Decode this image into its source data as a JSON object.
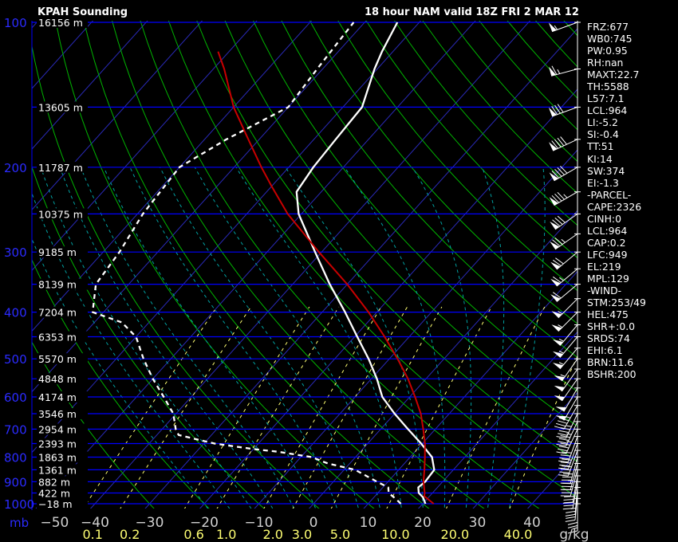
{
  "header": {
    "station": "KPAH Sounding",
    "valid": "18 hour NAM valid 18Z FRI  2 MAR 12"
  },
  "colors": {
    "background": "#000000",
    "isobar": "#0000ff",
    "pressure_label": "#2b2bff",
    "isotherm": "#2a2ab8",
    "dry_adiabat": "#00b400",
    "moist_adiabat": "#00a0a0",
    "mixing_ratio": "#ffff73",
    "temperature": "#ffffff",
    "dewpoint": "#ffffff",
    "parcel": "#c80000",
    "wind_barb": "#ffffff",
    "temperature_label": "#d0d0d0",
    "mixing_ratio_label": "#ffff73"
  },
  "indices": [
    "FRZ:677",
    "WB0:745",
    "PW:0.95",
    "RH:nan",
    "MAXT:22.7",
    "TH:5588",
    "L57:7.1",
    "LCL:964",
    "LI:-5.2",
    "SI:-0.4",
    "TT:51",
    "KI:14",
    "SW:374",
    "EI:-1.3",
    "-PARCEL-",
    "CAPE:2326",
    "CINH:0",
    "LCL:964",
    "CAP:0.2",
    "LFC:949",
    "EL:219",
    "MPL:129",
    "-WIND-",
    "STM:253/49",
    "HEL:475",
    "SHR+:0.0",
    "SRDS:74",
    "EHI:6.1",
    "BRN:11.6",
    "BSHR:200"
  ],
  "chart_data": {
    "type": "skew-t",
    "x_unit": "degC",
    "y_unit": "mb",
    "mixing_ratio_unit": "g/kg",
    "pressure_labels": [
      "100",
      "200",
      "300",
      "400",
      "500",
      "600",
      "700",
      "800",
      "900",
      "1000"
    ],
    "pressure_values": [
      100,
      200,
      300,
      400,
      500,
      600,
      700,
      800,
      900,
      1000
    ],
    "pressure_axis_unit_label": "mb",
    "height_levels": [
      {
        "p": 100,
        "label": "16156 m"
      },
      {
        "p": 150,
        "label": "13605 m"
      },
      {
        "p": 200,
        "label": "11787 m"
      },
      {
        "p": 250,
        "label": "10375 m"
      },
      {
        "p": 300,
        "label": "9185 m"
      },
      {
        "p": 350,
        "label": "8139 m"
      },
      {
        "p": 400,
        "label": "7204 m"
      },
      {
        "p": 450,
        "label": "6353 m"
      },
      {
        "p": 500,
        "label": "5570 m"
      },
      {
        "p": 550,
        "label": "4848 m"
      },
      {
        "p": 600,
        "label": "4174 m"
      },
      {
        "p": 650,
        "label": "3546 m"
      },
      {
        "p": 700,
        "label": "2954 m"
      },
      {
        "p": 750,
        "label": "2393 m"
      },
      {
        "p": 800,
        "label": "1863 m"
      },
      {
        "p": 850,
        "label": "1361 m"
      },
      {
        "p": 900,
        "label": "882 m"
      },
      {
        "p": 950,
        "label": "422 m"
      },
      {
        "p": 1000,
        "label": "−18 m"
      }
    ],
    "temperature_ticks": [
      {
        "t": -50,
        "label": "−50"
      },
      {
        "t": -40,
        "label": "−40"
      },
      {
        "t": -30,
        "label": "−30"
      },
      {
        "t": -20,
        "label": "−20"
      },
      {
        "t": -10,
        "label": "−10"
      },
      {
        "t": 0,
        "label": "0"
      },
      {
        "t": 10,
        "label": "10"
      },
      {
        "t": 20,
        "label": "20"
      },
      {
        "t": 30,
        "label": "30"
      },
      {
        "t": 40,
        "label": "40"
      }
    ],
    "mixing_ratio_lines": [
      {
        "w": 0.1,
        "label": "0.1"
      },
      {
        "w": 0.2,
        "label": "0.2"
      },
      {
        "w": 0.6,
        "label": "0.6"
      },
      {
        "w": 1.0,
        "label": "1.0"
      },
      {
        "w": 2.0,
        "label": "2.0"
      },
      {
        "w": 3.0,
        "label": "3.0"
      },
      {
        "w": 5.0,
        "label": "5.0"
      },
      {
        "w": 10.0,
        "label": "10.0"
      },
      {
        "w": 20.0,
        "label": "20.0"
      },
      {
        "w": 40.0,
        "label": "40.0"
      }
    ],
    "series": [
      {
        "key": "temperature",
        "style": "solid",
        "points": [
          [
            1000,
            20.5
          ],
          [
            970,
            19.0
          ],
          [
            950,
            17.5
          ],
          [
            925,
            16.5
          ],
          [
            900,
            16.8
          ],
          [
            850,
            16.5
          ],
          [
            800,
            14.0
          ],
          [
            750,
            9.8
          ],
          [
            700,
            5.0
          ],
          [
            650,
            0.0
          ],
          [
            600,
            -5.0
          ],
          [
            550,
            -9.0
          ],
          [
            500,
            -13.8
          ],
          [
            450,
            -19.5
          ],
          [
            400,
            -25.8
          ],
          [
            350,
            -33.2
          ],
          [
            300,
            -41.2
          ],
          [
            250,
            -50.5
          ],
          [
            225,
            -54.5
          ],
          [
            200,
            -55.5
          ],
          [
            175,
            -56.0
          ],
          [
            150,
            -56.5
          ],
          [
            125,
            -60.5
          ],
          [
            115,
            -62.0
          ],
          [
            100,
            -64.0
          ]
        ]
      },
      {
        "key": "dewpoint",
        "style": "dashed",
        "points": [
          [
            1000,
            16.0
          ],
          [
            980,
            14.5
          ],
          [
            950,
            12.0
          ],
          [
            925,
            11.0
          ],
          [
            900,
            8.0
          ],
          [
            850,
            2.0
          ],
          [
            825,
            -4.0
          ],
          [
            800,
            -8.0
          ],
          [
            780,
            -15.0
          ],
          [
            770,
            -20.0
          ],
          [
            750,
            -28.0
          ],
          [
            720,
            -36.0
          ],
          [
            700,
            -37.5
          ],
          [
            650,
            -40.5
          ],
          [
            600,
            -45.0
          ],
          [
            550,
            -50.0
          ],
          [
            500,
            -55.0
          ],
          [
            450,
            -60.0
          ],
          [
            420,
            -65.0
          ],
          [
            400,
            -72.0
          ],
          [
            350,
            -76.0
          ],
          [
            300,
            -77.0
          ],
          [
            250,
            -79.0
          ],
          [
            200,
            -80.0
          ],
          [
            175,
            -76.0
          ],
          [
            150,
            -70.0
          ],
          [
            125,
            -71.0
          ],
          [
            100,
            -72.0
          ]
        ]
      },
      {
        "key": "parcel",
        "style": "solid",
        "points": [
          [
            1000,
            22.0
          ],
          [
            964,
            19.0
          ],
          [
            950,
            18.6
          ],
          [
            900,
            16.5
          ],
          [
            850,
            14.7
          ],
          [
            800,
            12.7
          ],
          [
            750,
            10.5
          ],
          [
            700,
            7.8
          ],
          [
            650,
            4.8
          ],
          [
            600,
            1.0
          ],
          [
            550,
            -3.3
          ],
          [
            500,
            -8.5
          ],
          [
            450,
            -14.5
          ],
          [
            400,
            -21.5
          ],
          [
            350,
            -30.0
          ],
          [
            300,
            -40.5
          ],
          [
            250,
            -52.5
          ],
          [
            219,
            -60.0
          ],
          [
            200,
            -65.0
          ],
          [
            175,
            -72.0
          ],
          [
            150,
            -80.0
          ],
          [
            125,
            -88.0
          ],
          [
            115,
            -92.0
          ]
        ]
      }
    ],
    "wind_barbs": [
      {
        "p": 100,
        "dir": 250,
        "spd": 55
      },
      {
        "p": 125,
        "dir": 255,
        "spd": 65
      },
      {
        "p": 150,
        "dir": 250,
        "spd": 80
      },
      {
        "p": 175,
        "dir": 245,
        "spd": 90
      },
      {
        "p": 200,
        "dir": 240,
        "spd": 90
      },
      {
        "p": 225,
        "dir": 240,
        "spd": 85
      },
      {
        "p": 250,
        "dir": 235,
        "spd": 80
      },
      {
        "p": 275,
        "dir": 235,
        "spd": 75
      },
      {
        "p": 300,
        "dir": 230,
        "spd": 70
      },
      {
        "p": 325,
        "dir": 230,
        "spd": 65
      },
      {
        "p": 350,
        "dir": 230,
        "spd": 60
      },
      {
        "p": 375,
        "dir": 225,
        "spd": 55
      },
      {
        "p": 400,
        "dir": 225,
        "spd": 55
      },
      {
        "p": 425,
        "dir": 220,
        "spd": 55
      },
      {
        "p": 450,
        "dir": 220,
        "spd": 55
      },
      {
        "p": 475,
        "dir": 220,
        "spd": 55
      },
      {
        "p": 500,
        "dir": 215,
        "spd": 55
      },
      {
        "p": 525,
        "dir": 215,
        "spd": 50
      },
      {
        "p": 550,
        "dir": 215,
        "spd": 50
      },
      {
        "p": 575,
        "dir": 210,
        "spd": 50
      },
      {
        "p": 600,
        "dir": 210,
        "spd": 50
      },
      {
        "p": 625,
        "dir": 210,
        "spd": 45
      },
      {
        "p": 650,
        "dir": 205,
        "spd": 45
      },
      {
        "p": 675,
        "dir": 205,
        "spd": 45
      },
      {
        "p": 700,
        "dir": 205,
        "spd": 45
      },
      {
        "p": 725,
        "dir": 200,
        "spd": 40
      },
      {
        "p": 750,
        "dir": 200,
        "spd": 40
      },
      {
        "p": 775,
        "dir": 200,
        "spd": 40
      },
      {
        "p": 800,
        "dir": 195,
        "spd": 40
      },
      {
        "p": 825,
        "dir": 195,
        "spd": 35
      },
      {
        "p": 850,
        "dir": 195,
        "spd": 35
      },
      {
        "p": 875,
        "dir": 190,
        "spd": 30
      },
      {
        "p": 900,
        "dir": 190,
        "spd": 30
      },
      {
        "p": 925,
        "dir": 185,
        "spd": 25
      },
      {
        "p": 950,
        "dir": 185,
        "spd": 20
      },
      {
        "p": 975,
        "dir": 180,
        "spd": 20
      },
      {
        "p": 1000,
        "dir": 180,
        "spd": 15
      }
    ]
  }
}
